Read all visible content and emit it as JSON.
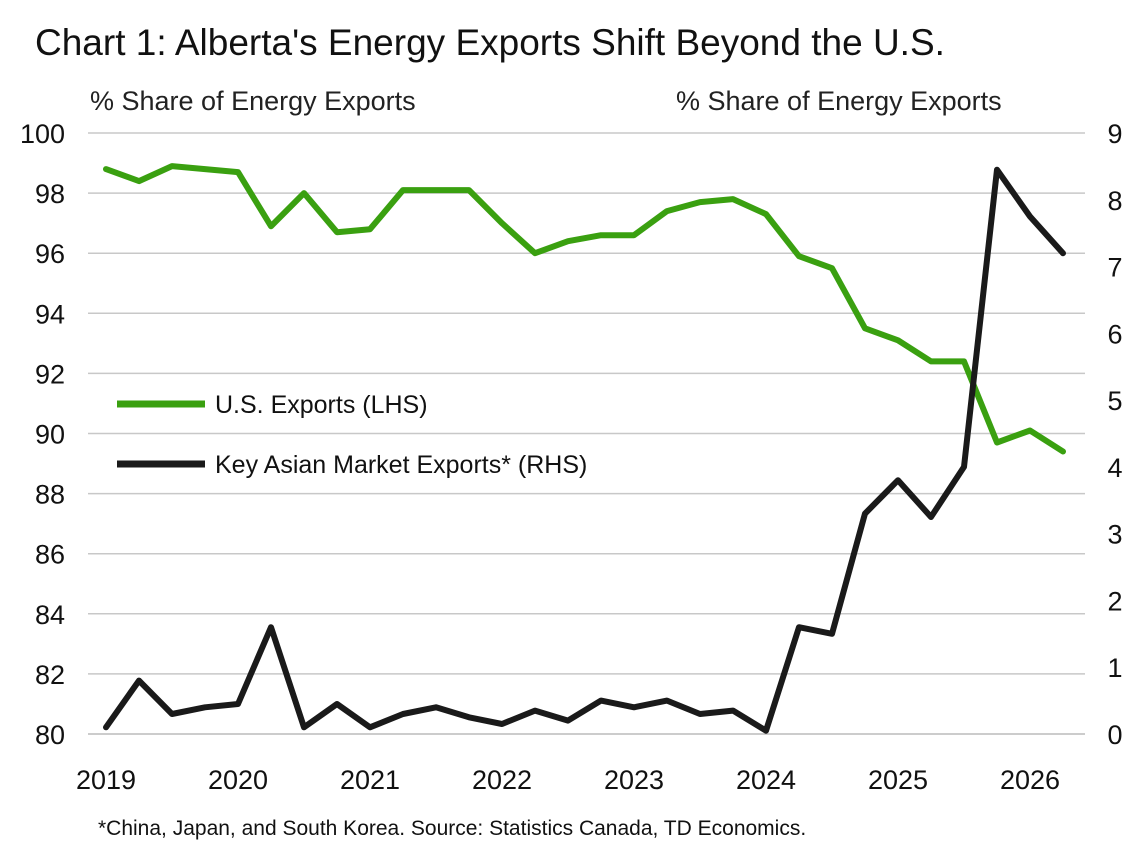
{
  "title": "Chart 1: Alberta's Energy Exports Shift Beyond the U.S.",
  "footnote": "*China, Japan, and South Korea. Source: Statistics Canada, TD Economics.",
  "colors": {
    "us": "#3aa010",
    "asia": "#1a1a1a",
    "grid": "#c8c8c8"
  },
  "chart_data": {
    "type": "line",
    "title": "Chart 1: Alberta's Energy Exports Shift Beyond the U.S.",
    "ylabel_left": "% Share of Energy Exports",
    "ylabel_right": "% Share of Energy Exports",
    "ylim_left": [
      80,
      100
    ],
    "ylim_right": [
      0,
      9
    ],
    "yticks_left": [
      "80",
      "82",
      "84",
      "86",
      "88",
      "90",
      "92",
      "94",
      "96",
      "98",
      "100"
    ],
    "yticks_right": [
      "0",
      "1",
      "2",
      "3",
      "4",
      "5",
      "6",
      "7",
      "8",
      "9"
    ],
    "xticks": [
      "2019",
      "2020",
      "2021",
      "2022",
      "2023",
      "2024",
      "2025",
      "2026"
    ],
    "x": [
      "2019Q1",
      "2019Q2",
      "2019Q3",
      "2019Q4",
      "2020Q1",
      "2020Q2",
      "2020Q3",
      "2020Q4",
      "2021Q1",
      "2021Q2",
      "2021Q3",
      "2021Q4",
      "2022Q1",
      "2022Q2",
      "2022Q3",
      "2022Q4",
      "2023Q1",
      "2023Q2",
      "2023Q3",
      "2023Q4",
      "2024Q1",
      "2024Q2",
      "2024Q3",
      "2024Q4",
      "2025Q1",
      "2025Q2",
      "2025Q3",
      "2025Q4",
      "2026Q1",
      "2026Q2"
    ],
    "grid": true,
    "legend_position": "center-left",
    "series": [
      {
        "name": "U.S. Exports (LHS)",
        "axis": "left",
        "values": [
          98.8,
          98.4,
          98.9,
          98.8,
          98.7,
          96.9,
          98.0,
          96.7,
          96.8,
          98.1,
          98.1,
          98.1,
          97.0,
          96.0,
          96.4,
          96.6,
          96.6,
          97.4,
          97.7,
          97.8,
          97.3,
          95.9,
          95.5,
          93.5,
          93.1,
          92.4,
          92.4,
          89.7,
          90.1,
          89.4
        ]
      },
      {
        "name": "Key Asian Market Exports* (RHS)",
        "axis": "right",
        "values": [
          0.1,
          0.8,
          0.3,
          0.4,
          0.45,
          1.6,
          0.1,
          0.45,
          0.1,
          0.3,
          0.4,
          0.25,
          0.15,
          0.35,
          0.2,
          0.5,
          0.4,
          0.5,
          0.3,
          0.35,
          0.05,
          1.6,
          1.5,
          3.3,
          3.8,
          3.25,
          4.0,
          8.45,
          7.75,
          7.2
        ]
      }
    ]
  }
}
